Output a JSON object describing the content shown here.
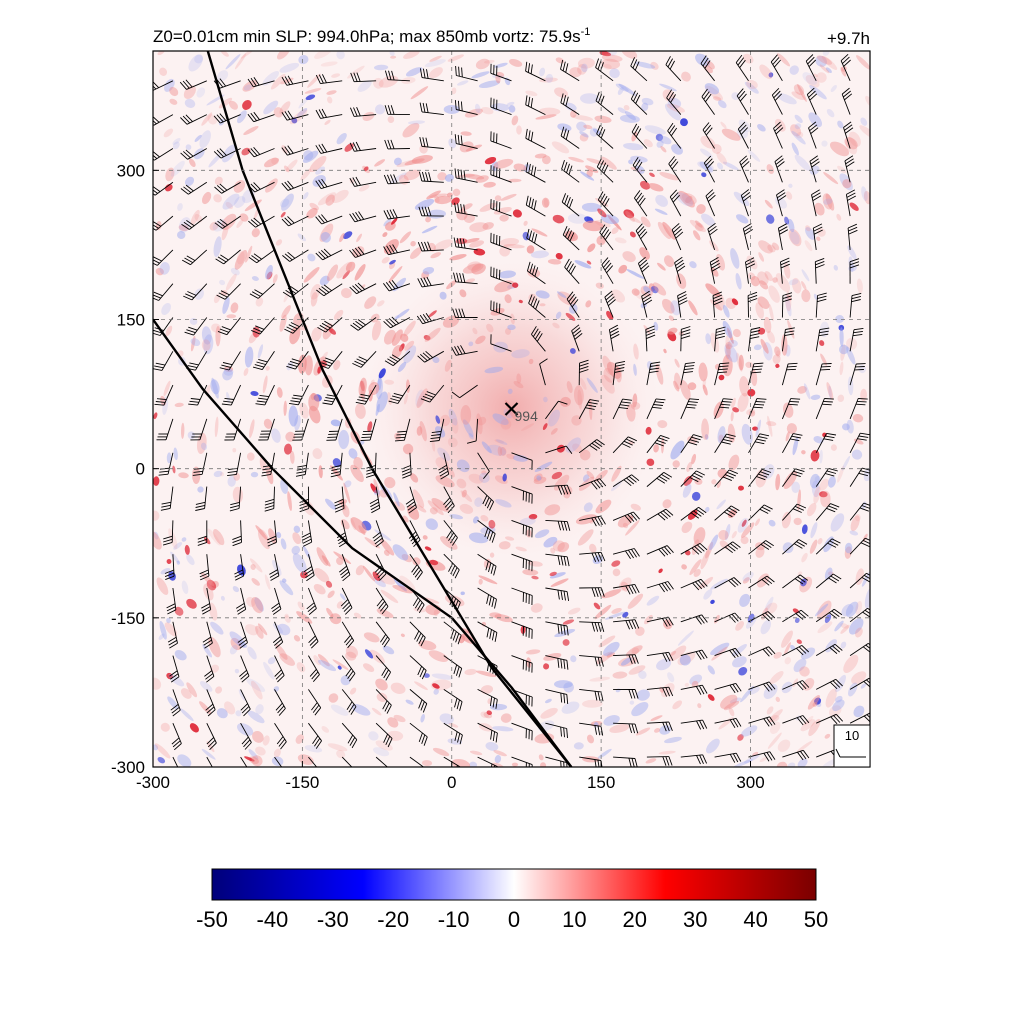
{
  "header": {
    "title_prefix": "Z0=0.01cm  min SLP: 994.0hPa; max 850mb vortz:  75.9s",
    "title_exponent": "-1",
    "time_label": "+9.7h"
  },
  "chart_data": {
    "type": "heatmap",
    "title": "Z0=0.01cm  min SLP: 994.0hPa; max 850mb vortz:  75.9s-1",
    "x_range": [
      -300,
      420
    ],
    "y_range": [
      -300,
      420
    ],
    "x_ticks": [
      -300,
      -150,
      0,
      150,
      300
    ],
    "y_ticks": [
      -300,
      -150,
      0,
      150,
      300
    ],
    "x_tick_labels": [
      "-300",
      "-150",
      "0",
      "150",
      "300"
    ],
    "y_tick_labels": [
      "-300",
      "-150",
      "0",
      "150",
      "300"
    ],
    "grid": "dashed",
    "storm_center": {
      "x": 60,
      "y": 60,
      "label": "994"
    },
    "coastlines": [
      {
        "name": "line-a",
        "points": [
          [
            -245,
            420
          ],
          [
            -210,
            300
          ],
          [
            -170,
            200
          ],
          [
            -130,
            100
          ],
          [
            -80,
            0
          ],
          [
            -20,
            -100
          ],
          [
            40,
            -200
          ],
          [
            120,
            -300
          ]
        ]
      },
      {
        "name": "line-b",
        "points": [
          [
            -300,
            150
          ],
          [
            -250,
            80
          ],
          [
            -180,
            0
          ],
          [
            -100,
            -80
          ],
          [
            0,
            -150
          ],
          [
            60,
            -220
          ],
          [
            120,
            -300
          ]
        ]
      }
    ],
    "wind_barb_reference": {
      "label": "10"
    },
    "colorbar": {
      "min": -50,
      "max": 50,
      "ticks": [
        -50,
        -40,
        -30,
        -20,
        -10,
        0,
        10,
        20,
        30,
        40,
        50
      ],
      "tick_labels": [
        "-50",
        "-40",
        "-30",
        "-20",
        "-10",
        "0",
        "10",
        "20",
        "30",
        "40",
        "50"
      ],
      "colors": [
        "#000080",
        "#0000ff",
        "#ffffff",
        "#ff0000",
        "#800000"
      ]
    }
  }
}
